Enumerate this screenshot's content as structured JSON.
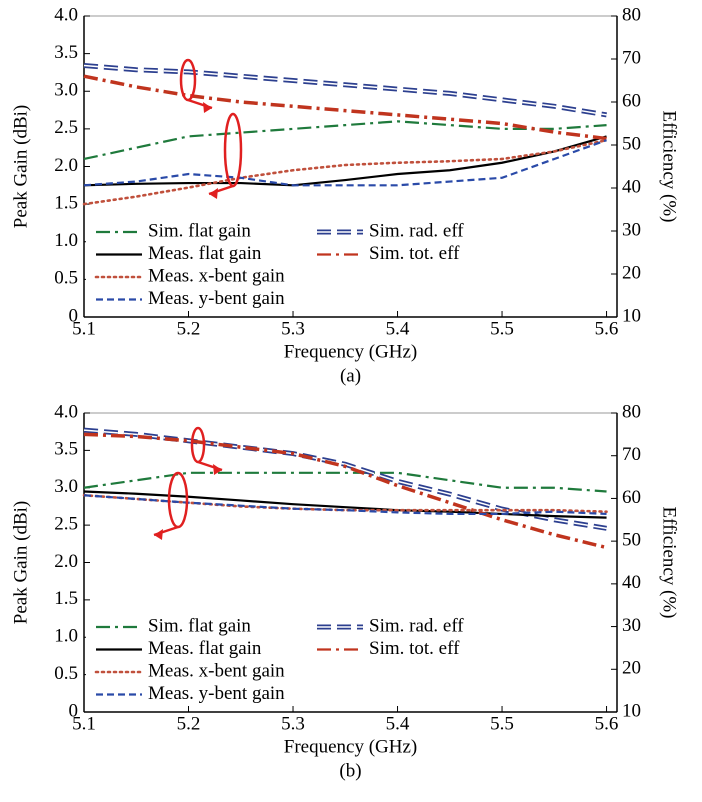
{
  "chart_data": [
    {
      "type": "line",
      "caption": "(a)",
      "xlabel": "Frequency (GHz)",
      "ylabel": "Peak Gain (dBi)",
      "y2label": "Efficiency (%)",
      "x": [
        5.1,
        5.15,
        5.2,
        5.25,
        5.3,
        5.35,
        5.4,
        5.45,
        5.5,
        5.55,
        5.6
      ],
      "xlim": [
        5.1,
        5.61
      ],
      "xticks": [
        5.1,
        5.2,
        5.3,
        5.4,
        5.5,
        5.6
      ],
      "ylim": [
        0,
        4
      ],
      "yticks": [
        0,
        0.5,
        {
          "value": 1,
          "label": "1.0"
        },
        1.5,
        {
          "value": 2,
          "label": "2.0"
        },
        2.5,
        {
          "value": 3,
          "label": "3.0"
        },
        3.5,
        {
          "value": 4,
          "label": "4.0"
        }
      ],
      "y2lim": [
        10,
        80
      ],
      "y2ticks": [
        10,
        20,
        30,
        40,
        50,
        60,
        70,
        80
      ],
      "series": [
        {
          "name": "Sim. flat gain",
          "color": "#1f7a3c",
          "linestyle": "dash-dot",
          "values": [
            2.1,
            2.25,
            2.4,
            2.45,
            2.5,
            2.55,
            2.6,
            2.55,
            2.5,
            2.5,
            2.55
          ]
        },
        {
          "name": "Sim. rad. eff",
          "color": "#2c3f8f",
          "linestyle": "double-dash",
          "axis": "y2",
          "values": [
            68.5,
            67.5,
            67,
            66,
            65,
            64,
            63,
            62,
            60.5,
            59,
            57
          ]
        },
        {
          "name": "Meas. flat gain",
          "color": "#000000",
          "linestyle": "solid",
          "values": [
            1.75,
            1.77,
            1.78,
            1.78,
            1.75,
            1.82,
            1.9,
            1.95,
            2.05,
            2.2,
            2.4
          ]
        },
        {
          "name": "Sim. tot. eff",
          "color": "#c0341e",
          "linestyle": "dash-dot",
          "axis": "y2",
          "values": [
            66,
            63.5,
            61.5,
            60,
            59,
            58,
            57,
            56,
            55,
            53,
            51.5
          ]
        },
        {
          "name": "Meas. x-bent gain",
          "color": "#c0503c",
          "linestyle": "dot",
          "values": [
            1.5,
            1.6,
            1.72,
            1.85,
            1.95,
            2.02,
            2.05,
            2.07,
            2.1,
            2.2,
            2.35
          ]
        },
        {
          "name": "Meas. y-bent gain",
          "color": "#2a4aa8",
          "linestyle": "dash",
          "values": [
            1.75,
            1.8,
            1.9,
            1.85,
            1.75,
            1.75,
            1.75,
            1.8,
            1.85,
            2.1,
            2.35
          ]
        }
      ]
    },
    {
      "type": "line",
      "caption": "(b)",
      "xlabel": "Frequency (GHz)",
      "ylabel": "Peak Gain (dBi)",
      "y2label": "Efficiency (%)",
      "x": [
        5.1,
        5.15,
        5.2,
        5.25,
        5.3,
        5.35,
        5.4,
        5.45,
        5.5,
        5.55,
        5.6
      ],
      "xlim": [
        5.1,
        5.61
      ],
      "xticks": [
        5.1,
        5.2,
        5.3,
        5.4,
        5.5,
        5.6
      ],
      "ylim": [
        0,
        4
      ],
      "yticks": [
        0,
        0.5,
        {
          "value": 1,
          "label": "1.0"
        },
        1.5,
        {
          "value": 2,
          "label": "2.0"
        },
        2.5,
        {
          "value": 3,
          "label": "3.0"
        },
        3.5,
        {
          "value": 4,
          "label": "4.0"
        }
      ],
      "y2lim": [
        10,
        80
      ],
      "y2ticks": [
        10,
        20,
        30,
        40,
        50,
        60,
        70,
        80
      ],
      "series": [
        {
          "name": "Sim. flat gain",
          "color": "#1f7a3c",
          "linestyle": "dash-dot",
          "values": [
            3.0,
            3.1,
            3.2,
            3.2,
            3.2,
            3.2,
            3.2,
            3.1,
            3.0,
            3.0,
            2.95
          ]
        },
        {
          "name": "Sim. rad. eff",
          "color": "#2c3f8f",
          "linestyle": "double-dash",
          "axis": "y2",
          "values": [
            76,
            75,
            73.5,
            72,
            70.5,
            68,
            64,
            61,
            57.5,
            55,
            53
          ]
        },
        {
          "name": "Meas. flat gain",
          "color": "#000000",
          "linestyle": "solid",
          "values": [
            2.95,
            2.92,
            2.88,
            2.83,
            2.78,
            2.74,
            2.7,
            2.68,
            2.65,
            2.62,
            2.6
          ]
        },
        {
          "name": "Sim. tot. eff",
          "color": "#c0341e",
          "linestyle": "dash-dot",
          "axis": "y2",
          "values": [
            75,
            74.5,
            73.5,
            72,
            70.5,
            67.5,
            63,
            59,
            55,
            51.5,
            48.5
          ]
        },
        {
          "name": "Meas. x-bent gain",
          "color": "#c0503c",
          "linestyle": "dot",
          "values": [
            2.9,
            2.85,
            2.8,
            2.75,
            2.72,
            2.7,
            2.7,
            2.7,
            2.7,
            2.7,
            2.68
          ]
        },
        {
          "name": "Meas. y-bent gain",
          "color": "#2a4aa8",
          "linestyle": "dash",
          "values": [
            2.9,
            2.85,
            2.8,
            2.76,
            2.72,
            2.7,
            2.67,
            2.65,
            2.65,
            2.68,
            2.65
          ]
        }
      ]
    }
  ]
}
